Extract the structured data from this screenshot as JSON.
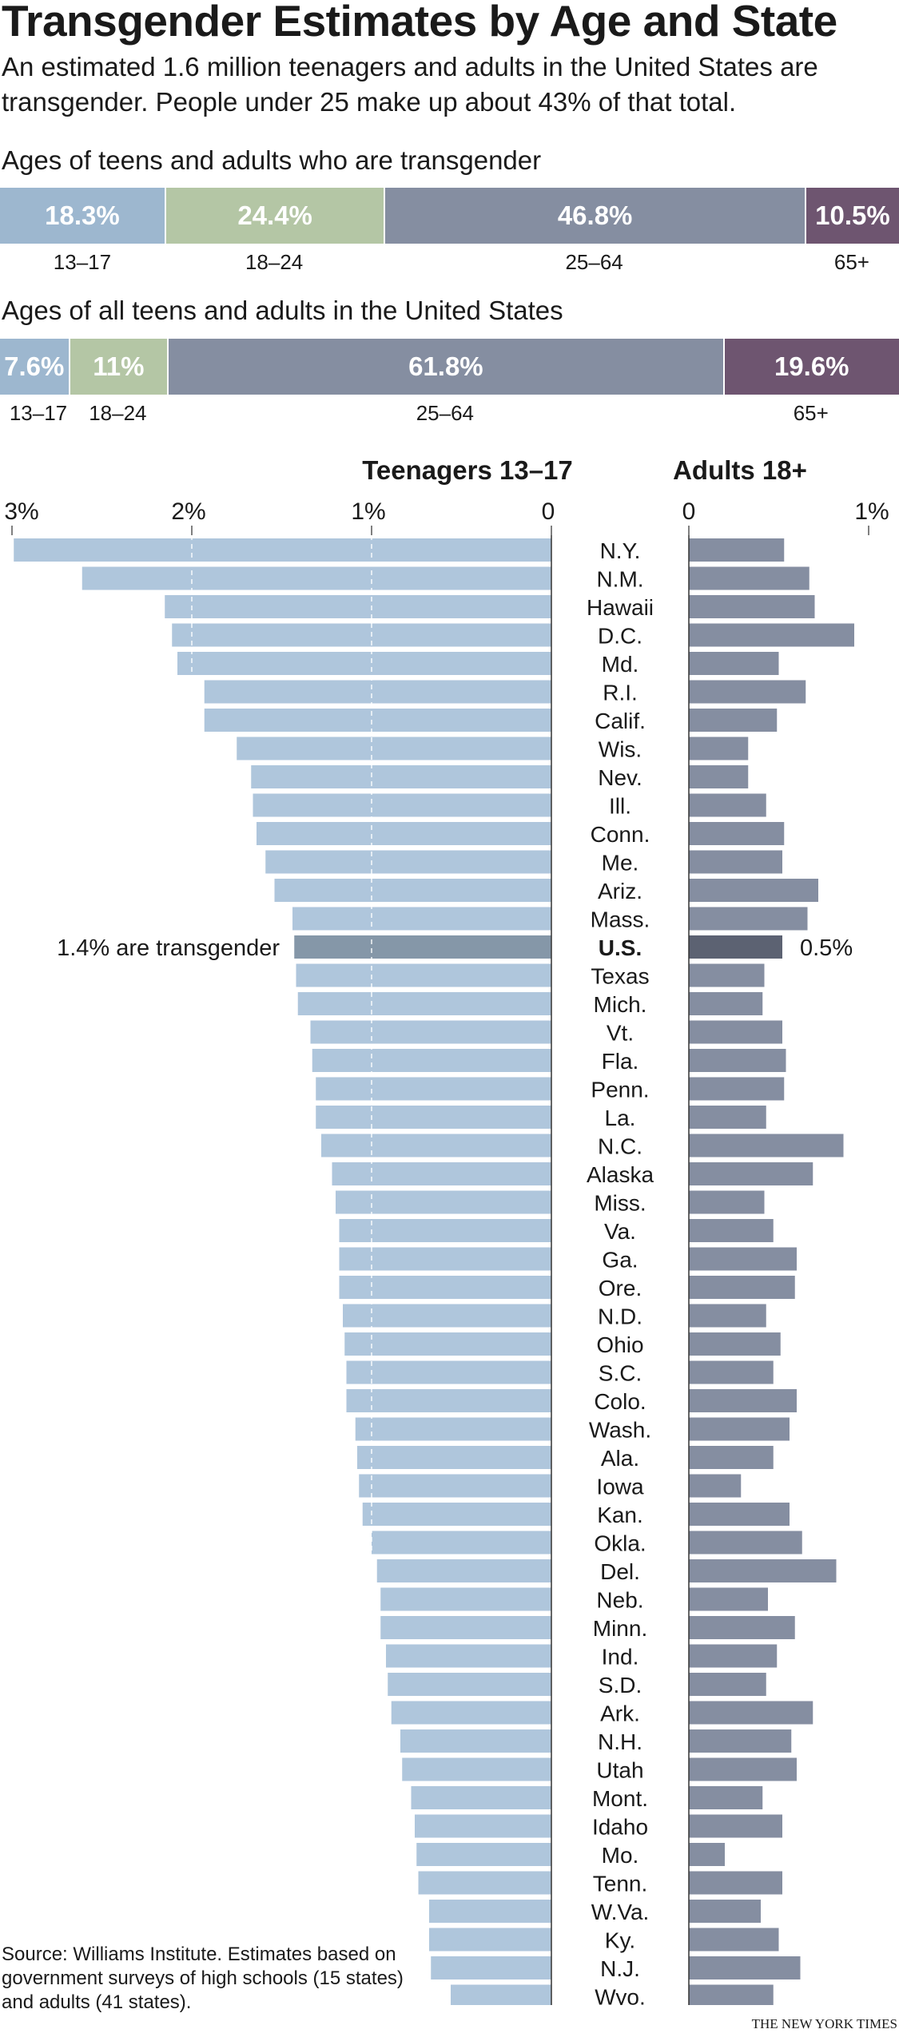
{
  "header": {
    "title": "Transgender Estimates by Age and State",
    "subtitle": "An estimated 1.6 million teenagers and adults in the United States are transgender. People under 25 make up about 43% of that total."
  },
  "colors": {
    "age_13_17": "#9db7cf",
    "age_18_24": "#b4c6a5",
    "age_25_64": "#858ea1",
    "age_65_plus": "#6e5570",
    "teen_bar": "#afc6dc",
    "adult_bar": "#858ea1",
    "us_teen_bar": "#8597a8",
    "us_adult_bar": "#5c6272"
  },
  "chart_data": [
    {
      "type": "bar",
      "orientation": "horizontal-stacked",
      "title": "Ages of teens and adults who are transgender",
      "categories": [
        "13–17",
        "18–24",
        "25–64",
        "65+"
      ],
      "values": [
        18.3,
        24.4,
        46.8,
        10.5
      ],
      "labels": [
        "18.3%",
        "24.4%",
        "46.8%",
        "10.5%"
      ]
    },
    {
      "type": "bar",
      "orientation": "horizontal-stacked",
      "title": "Ages of all teens and adults in the United States",
      "categories": [
        "13–17",
        "18–24",
        "25–64",
        "65+"
      ],
      "values": [
        7.6,
        11,
        61.8,
        19.6
      ],
      "labels": [
        "7.6%",
        "11%",
        "61.8%",
        "19.6%"
      ]
    },
    {
      "type": "bar",
      "orientation": "horizontal-butterfly",
      "series": [
        {
          "name": "Teenagers 13–17",
          "ticks": [
            "3%",
            "2%",
            "1%",
            "0"
          ],
          "xlim": [
            3,
            0
          ]
        },
        {
          "name": "Adults 18+",
          "ticks": [
            "0",
            "1%"
          ],
          "xlim": [
            0,
            1
          ]
        }
      ],
      "highlight": {
        "state": "U.S.",
        "teen_label": "1.4% are transgender",
        "adult_label": "0.5%"
      },
      "states": [
        {
          "name": "N.Y.",
          "teen": 2.99,
          "adult": 0.53
        },
        {
          "name": "N.M.",
          "teen": 2.61,
          "adult": 0.67
        },
        {
          "name": "Hawaii",
          "teen": 2.15,
          "adult": 0.7
        },
        {
          "name": "D.C.",
          "teen": 2.11,
          "adult": 0.92
        },
        {
          "name": "Md.",
          "teen": 2.08,
          "adult": 0.5
        },
        {
          "name": "R.I.",
          "teen": 1.93,
          "adult": 0.65
        },
        {
          "name": "Calif.",
          "teen": 1.93,
          "adult": 0.49
        },
        {
          "name": "Wis.",
          "teen": 1.75,
          "adult": 0.33
        },
        {
          "name": "Nev.",
          "teen": 1.67,
          "adult": 0.33
        },
        {
          "name": "Ill.",
          "teen": 1.66,
          "adult": 0.43
        },
        {
          "name": "Conn.",
          "teen": 1.64,
          "adult": 0.53
        },
        {
          "name": "Me.",
          "teen": 1.59,
          "adult": 0.52
        },
        {
          "name": "Ariz.",
          "teen": 1.54,
          "adult": 0.72
        },
        {
          "name": "Mass.",
          "teen": 1.44,
          "adult": 0.66
        },
        {
          "name": "U.S.",
          "teen": 1.43,
          "adult": 0.52
        },
        {
          "name": "Texas",
          "teen": 1.42,
          "adult": 0.42
        },
        {
          "name": "Mich.",
          "teen": 1.41,
          "adult": 0.41
        },
        {
          "name": "Vt.",
          "teen": 1.34,
          "adult": 0.52
        },
        {
          "name": "Fla.",
          "teen": 1.33,
          "adult": 0.54
        },
        {
          "name": "Penn.",
          "teen": 1.31,
          "adult": 0.53
        },
        {
          "name": "La.",
          "teen": 1.31,
          "adult": 0.43
        },
        {
          "name": "N.C.",
          "teen": 1.28,
          "adult": 0.86
        },
        {
          "name": "Alaska",
          "teen": 1.22,
          "adult": 0.69
        },
        {
          "name": "Miss.",
          "teen": 1.2,
          "adult": 0.42
        },
        {
          "name": "Va.",
          "teen": 1.18,
          "adult": 0.47
        },
        {
          "name": "Ga.",
          "teen": 1.18,
          "adult": 0.6
        },
        {
          "name": "Ore.",
          "teen": 1.18,
          "adult": 0.59
        },
        {
          "name": "N.D.",
          "teen": 1.16,
          "adult": 0.43
        },
        {
          "name": "Ohio",
          "teen": 1.15,
          "adult": 0.51
        },
        {
          "name": "S.C.",
          "teen": 1.14,
          "adult": 0.47
        },
        {
          "name": "Colo.",
          "teen": 1.14,
          "adult": 0.6
        },
        {
          "name": "Wash.",
          "teen": 1.09,
          "adult": 0.56
        },
        {
          "name": "Ala.",
          "teen": 1.08,
          "adult": 0.47
        },
        {
          "name": "Iowa",
          "teen": 1.07,
          "adult": 0.29
        },
        {
          "name": "Kan.",
          "teen": 1.05,
          "adult": 0.56
        },
        {
          "name": "Okla.",
          "teen": 1.0,
          "adult": 0.63
        },
        {
          "name": "Del.",
          "teen": 0.97,
          "adult": 0.82
        },
        {
          "name": "Neb.",
          "teen": 0.95,
          "adult": 0.44
        },
        {
          "name": "Minn.",
          "teen": 0.95,
          "adult": 0.59
        },
        {
          "name": "Ind.",
          "teen": 0.92,
          "adult": 0.49
        },
        {
          "name": "S.D.",
          "teen": 0.91,
          "adult": 0.43
        },
        {
          "name": "Ark.",
          "teen": 0.89,
          "adult": 0.69
        },
        {
          "name": "N.H.",
          "teen": 0.84,
          "adult": 0.57
        },
        {
          "name": "Utah",
          "teen": 0.83,
          "adult": 0.6
        },
        {
          "name": "Mont.",
          "teen": 0.78,
          "adult": 0.41
        },
        {
          "name": "Idaho",
          "teen": 0.76,
          "adult": 0.52
        },
        {
          "name": "Mo.",
          "teen": 0.75,
          "adult": 0.2
        },
        {
          "name": "Tenn.",
          "teen": 0.74,
          "adult": 0.52
        },
        {
          "name": "W.Va.",
          "teen": 0.68,
          "adult": 0.4
        },
        {
          "name": "Ky.",
          "teen": 0.68,
          "adult": 0.5
        },
        {
          "name": "N.J.",
          "teen": 0.67,
          "adult": 0.62
        },
        {
          "name": "Wyo.",
          "teen": 0.56,
          "adult": 0.47
        }
      ]
    }
  ],
  "footer": {
    "note": "Source: Williams Institute. Estimates based on government surveys of high schools (15 states) and adults (41 states).",
    "credit": "THE NEW YORK TIMES"
  }
}
